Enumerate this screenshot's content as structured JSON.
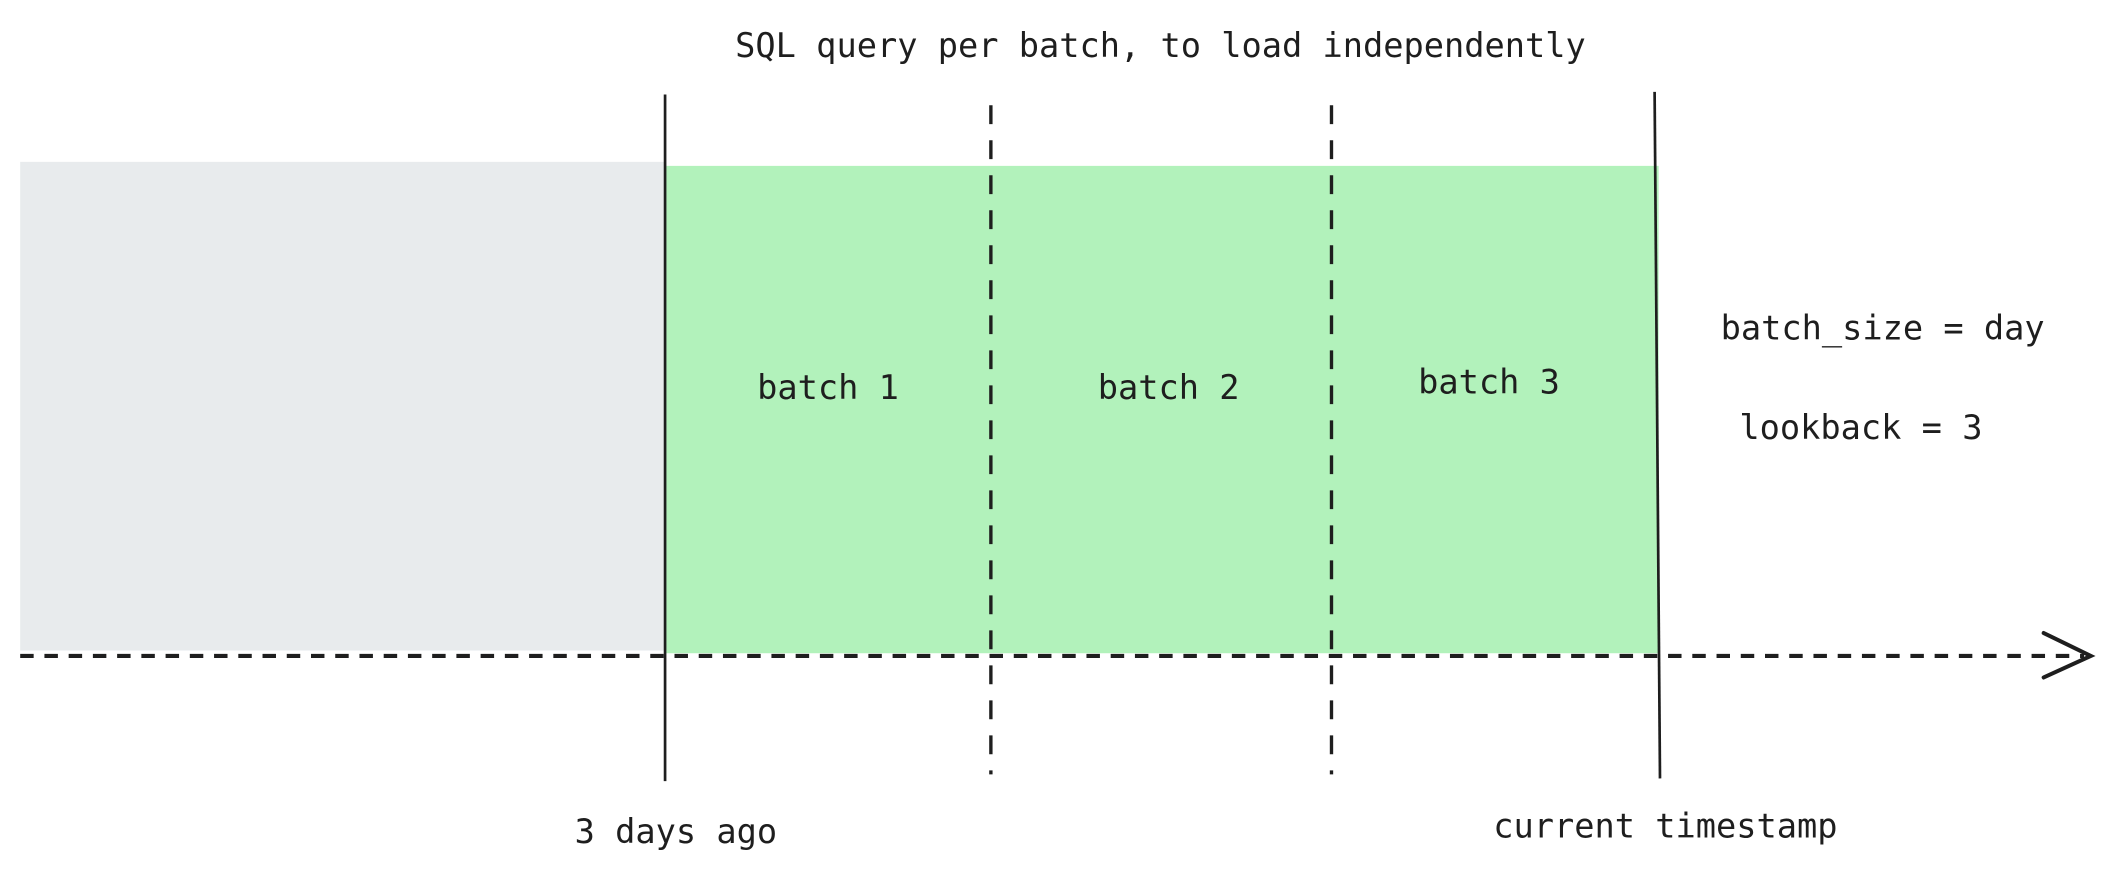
{
  "title": "SQL query per batch, to load independently",
  "regions": {
    "past": {
      "color": "#e8ebed"
    },
    "lookback": {
      "color": "#b2f2bb"
    }
  },
  "batches": [
    {
      "label": "batch 1"
    },
    {
      "label": "batch 2"
    },
    {
      "label": "batch 3"
    }
  ],
  "markers": {
    "start": "3 days ago",
    "end": "current timestamp"
  },
  "params": {
    "batch_size": "batch_size = day",
    "lookback": "lookback = 3"
  },
  "stroke_color": "#1e1e1e"
}
